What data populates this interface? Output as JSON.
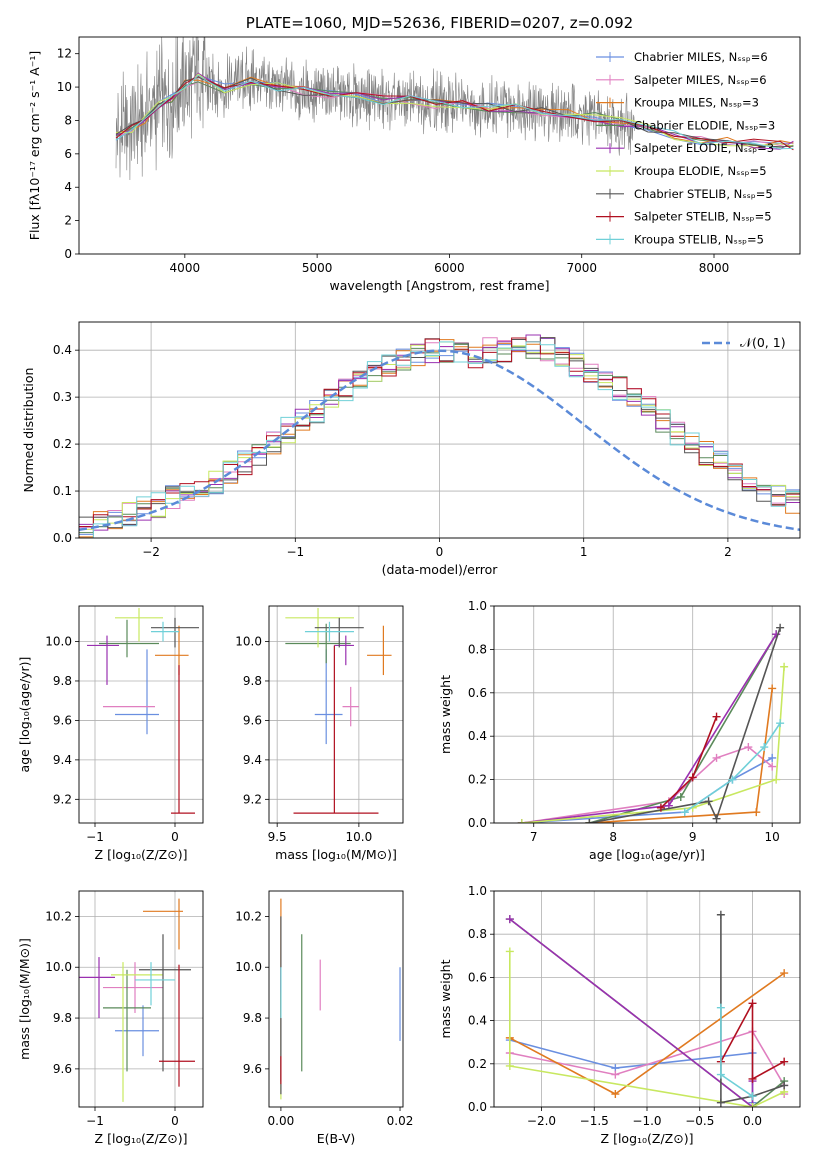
{
  "colors": [
    "#6a8fe0",
    "#e07fc0",
    "#e07a20",
    "#5a8a5a",
    "#9a30b0",
    "#c8e860",
    "#555555",
    "#b01020",
    "#70d0d8"
  ],
  "chart_data": [
    {
      "id": "spectrum",
      "type": "line",
      "title": "PLATE=1060, MJD=52636, FIBERID=0207, z=0.092",
      "xlabel": "wavelength [Angstrom, rest frame]",
      "ylabel": "Flux [fλ10⁻¹⁷ erg cm⁻² s⁻¹ A⁻¹]",
      "xlim": [
        3200,
        8650
      ],
      "ylim": [
        0,
        13
      ],
      "xticks": [
        4000,
        5000,
        6000,
        7000,
        8000
      ],
      "yticks": [
        0,
        2,
        4,
        6,
        8,
        10,
        12
      ],
      "grid": false,
      "legend_position": "top-right",
      "data_color": "#808080",
      "data": {
        "x": [
          3480,
          3600,
          3700,
          3800,
          3900,
          4000,
          4100,
          4200,
          4300,
          4400,
          4500,
          4600,
          4700,
          4800,
          4900,
          5000,
          5100,
          5200,
          5300,
          5400,
          5500,
          5600,
          5700,
          5800,
          5900,
          6000,
          6100,
          6200,
          6300,
          6400,
          6500,
          6600,
          6700,
          6800,
          6900,
          7000,
          7100,
          7200,
          7300,
          7400
        ],
        "y": [
          7.1,
          7.6,
          8.1,
          9.0,
          9.4,
          10.1,
          10.5,
          10.2,
          9.9,
          10.3,
          10.4,
          10.2,
          10.1,
          9.9,
          9.8,
          9.5,
          9.6,
          9.5,
          9.4,
          9.3,
          9.2,
          9.0,
          9.3,
          9.2,
          9.1,
          9.0,
          8.9,
          8.9,
          8.8,
          8.7,
          8.8,
          8.7,
          8.5,
          8.6,
          8.5,
          8.3,
          8.2,
          8.0,
          7.7,
          7.5
        ]
      },
      "models_x": [
        3480,
        3600,
        3700,
        3800,
        3900,
        4000,
        4100,
        4300,
        4500,
        4700,
        4900,
        5100,
        5300,
        5500,
        5700,
        5900,
        6100,
        6300,
        6500,
        6700,
        6900,
        7100,
        7300,
        7500,
        7700,
        7900,
        8100,
        8300,
        8500,
        8600
      ],
      "models_y": [
        7.0,
        7.5,
        8.0,
        8.9,
        9.3,
        10.2,
        10.6,
        9.9,
        10.4,
        10.0,
        9.8,
        9.6,
        9.4,
        9.2,
        9.2,
        9.0,
        8.9,
        8.8,
        8.7,
        8.5,
        8.4,
        8.2,
        7.9,
        7.5,
        7.1,
        6.8,
        6.7,
        6.6,
        6.5,
        6.5
      ],
      "series": [
        {
          "name": "Chabrier MILES, Nₛₛₚ=6"
        },
        {
          "name": "Salpeter MILES, Nₛₛₚ=6"
        },
        {
          "name": "Kroupa MILES, Nₛₛₚ=3"
        },
        {
          "name": "Chabrier ELODIE, Nₛₛₚ=3"
        },
        {
          "name": "Salpeter ELODIE, Nₛₛₚ=3"
        },
        {
          "name": "Kroupa ELODIE, Nₛₛₚ=5"
        },
        {
          "name": "Chabrier STELIB, Nₛₛₚ=5"
        },
        {
          "name": "Salpeter STELIB, Nₛₛₚ=5"
        },
        {
          "name": "Kroupa STELIB, Nₛₛₚ=5"
        }
      ]
    },
    {
      "id": "residuals",
      "type": "line",
      "xlabel": "(data-model)/error",
      "ylabel": "Normed distribution",
      "xlim": [
        -2.5,
        2.5
      ],
      "ylim": [
        0,
        0.46
      ],
      "xticks": [
        -2,
        -1,
        0,
        1,
        2
      ],
      "yticks": [
        0.0,
        0.1,
        0.2,
        0.3,
        0.4
      ],
      "grid": true,
      "legend_position": "top-right",
      "legend": "𝒩(0, 1)",
      "bins_start": -2.5,
      "bin_width": 0.1,
      "base_hist": [
        0.025,
        0.03,
        0.04,
        0.05,
        0.06,
        0.07,
        0.085,
        0.1,
        0.11,
        0.12,
        0.14,
        0.16,
        0.18,
        0.2,
        0.23,
        0.25,
        0.27,
        0.3,
        0.32,
        0.33,
        0.35,
        0.37,
        0.38,
        0.39,
        0.4,
        0.395,
        0.4,
        0.39,
        0.4,
        0.4,
        0.42,
        0.41,
        0.4,
        0.38,
        0.37,
        0.35,
        0.33,
        0.32,
        0.3,
        0.28,
        0.25,
        0.22,
        0.2,
        0.18,
        0.16,
        0.14,
        0.12,
        0.1,
        0.09,
        0.08,
        0.07,
        0.06,
        0.05,
        0.045,
        0.04,
        0.04
      ]
    },
    {
      "id": "age-vs-z",
      "type": "scatter",
      "xlabel": "Z [log₁₀(Z/Z⊙)]",
      "ylabel": "age  [log₁₀(age/yr)]",
      "xlim": [
        -1.2,
        0.35
      ],
      "ylim": [
        9.08,
        10.18
      ],
      "xticks": [
        -1,
        0
      ],
      "yticks": [
        9.2,
        9.4,
        9.6,
        9.8,
        10.0
      ],
      "grid": true,
      "points": [
        {
          "x": -0.35,
          "xerr": [
            0.4,
            0.15
          ],
          "y": 9.63,
          "yerr": [
            0.1,
            0.33
          ]
        },
        {
          "x": -0.5,
          "xerr": [
            0.4,
            0.25
          ],
          "y": 9.67,
          "yerr": [
            0.0,
            0.0
          ]
        },
        {
          "x": 0.05,
          "xerr": [
            0.3,
            0.12
          ],
          "y": 9.93,
          "yerr": [
            0.1,
            0.15
          ]
        },
        {
          "x": -0.6,
          "xerr": [
            0.35,
            0.4
          ],
          "y": 9.99,
          "yerr": [
            0.07,
            0.12
          ]
        },
        {
          "x": -0.85,
          "xerr": [
            0.25,
            0.15
          ],
          "y": 9.98,
          "yerr": [
            0.2,
            0.05
          ]
        },
        {
          "x": -0.45,
          "xerr": [
            0.3,
            0.3
          ],
          "y": 10.12,
          "yerr": [
            0.12,
            0.05
          ]
        },
        {
          "x": 0.0,
          "xerr": [
            0.3,
            0.3
          ],
          "y": 10.07,
          "yerr": [
            0.1,
            0.05
          ]
        },
        {
          "x": 0.05,
          "xerr": [
            0.1,
            0.2
          ],
          "y": 9.13,
          "yerr": [
            0.0,
            0.75
          ]
        },
        {
          "x": -0.15,
          "xerr": [
            0.15,
            0.2
          ],
          "y": 10.05,
          "yerr": [
            0.05,
            0.05
          ]
        }
      ]
    },
    {
      "id": "age-vs-mass",
      "type": "scatter",
      "xlabel": "mass [log₁₀(M/M⊙)]",
      "ylabel": "",
      "xlim": [
        9.45,
        10.27
      ],
      "ylim": [
        9.08,
        10.18
      ],
      "xticks": [
        9.5,
        10.0
      ],
      "yticks": [
        9.2,
        9.4,
        9.6,
        9.8,
        10.0
      ],
      "grid": true,
      "points": [
        {
          "x": 9.8,
          "xerr": [
            0.07,
            0.1
          ],
          "y": 9.63,
          "yerr": [
            0.15,
            0.33
          ]
        },
        {
          "x": 9.95,
          "xerr": [
            0.05,
            0.05
          ],
          "y": 9.67,
          "yerr": [
            0.1,
            0.1
          ]
        },
        {
          "x": 10.15,
          "xerr": [
            0.1,
            0.05
          ],
          "y": 9.93,
          "yerr": [
            0.1,
            0.15
          ]
        },
        {
          "x": 9.8,
          "xerr": [
            0.25,
            0.15
          ],
          "y": 9.99,
          "yerr": [
            0.1,
            0.1
          ]
        },
        {
          "x": 9.92,
          "xerr": [
            0.07,
            0.05
          ],
          "y": 9.98,
          "yerr": [
            0.1,
            0.05
          ]
        },
        {
          "x": 9.75,
          "xerr": [
            0.2,
            0.22
          ],
          "y": 10.12,
          "yerr": [
            0.15,
            0.05
          ]
        },
        {
          "x": 9.88,
          "xerr": [
            0.15,
            0.15
          ],
          "y": 10.07,
          "yerr": [
            0.1,
            0.05
          ]
        },
        {
          "x": 9.85,
          "xerr": [
            0.25,
            0.27
          ],
          "y": 9.13,
          "yerr": [
            0.0,
            0.85
          ]
        },
        {
          "x": 9.82,
          "xerr": [
            0.15,
            0.15
          ],
          "y": 10.05,
          "yerr": [
            0.05,
            0.05
          ]
        }
      ]
    },
    {
      "id": "weight-vs-age",
      "type": "line",
      "xlabel": "age  [log₁₀(age/yr)]",
      "ylabel": "mass weight",
      "xlim": [
        6.5,
        10.35
      ],
      "ylim": [
        0,
        1.0
      ],
      "xticks": [
        7,
        8,
        9,
        10
      ],
      "yticks": [
        0.0,
        0.2,
        0.4,
        0.6,
        0.8,
        1.0
      ],
      "grid": true,
      "series": [
        {
          "x": [
            6.85,
            8.9,
            9.5,
            10.0
          ],
          "y": [
            0.0,
            0.05,
            0.2,
            0.3
          ]
        },
        {
          "x": [
            6.85,
            8.7,
            9.3,
            9.7,
            10.0
          ],
          "y": [
            0.0,
            0.1,
            0.3,
            0.35,
            0.26
          ]
        },
        {
          "x": [
            7.7,
            9.8,
            10.0
          ],
          "y": [
            0.0,
            0.05,
            0.62
          ]
        },
        {
          "x": [
            7.7,
            8.85,
            10.05
          ],
          "y": [
            0.0,
            0.12,
            0.87
          ]
        },
        {
          "x": [
            6.85,
            8.7,
            10.05
          ],
          "y": [
            0.0,
            0.08,
            0.87
          ]
        },
        {
          "x": [
            6.85,
            9.0,
            10.05,
            10.15
          ],
          "y": [
            0.0,
            0.07,
            0.2,
            0.72
          ]
        },
        {
          "x": [
            7.7,
            9.2,
            9.3,
            10.1
          ],
          "y": [
            0.0,
            0.1,
            0.02,
            0.9
          ]
        },
        {
          "x": [
            8.6,
            9.0,
            9.3
          ],
          "y": [
            0.07,
            0.21,
            0.49
          ]
        },
        {
          "x": [
            8.9,
            9.5,
            9.9,
            10.1
          ],
          "y": [
            0.05,
            0.2,
            0.35,
            0.46
          ]
        }
      ]
    },
    {
      "id": "mass-vs-z",
      "type": "scatter",
      "xlabel": "Z [log₁₀(Z/Z⊙)]",
      "ylabel": "mass [log₁₀(M/M⊙)]",
      "xlim": [
        -1.2,
        0.35
      ],
      "ylim": [
        9.45,
        10.3
      ],
      "xticks": [
        -1,
        0
      ],
      "yticks": [
        9.6,
        9.8,
        10.0,
        10.2
      ],
      "grid": true,
      "points": [
        {
          "x": -0.4,
          "xerr": [
            0.35,
            0.2
          ],
          "y": 9.75,
          "yerr": [
            0.1,
            0.1
          ]
        },
        {
          "x": -0.5,
          "xerr": [
            0.4,
            0.35
          ],
          "y": 9.92,
          "yerr": [
            0.1,
            0.1
          ]
        },
        {
          "x": 0.05,
          "xerr": [
            0.45,
            0.05
          ],
          "y": 10.22,
          "yerr": [
            0.15,
            0.05
          ]
        },
        {
          "x": -0.6,
          "xerr": [
            0.3,
            0.3
          ],
          "y": 9.84,
          "yerr": [
            0.25,
            0.15
          ]
        },
        {
          "x": -0.95,
          "xerr": [
            0.3,
            0.2
          ],
          "y": 9.96,
          "yerr": [
            0.16,
            0.08
          ]
        },
        {
          "x": -0.65,
          "xerr": [
            0.15,
            0.5
          ],
          "y": 9.97,
          "yerr": [
            0.5,
            0.05
          ]
        },
        {
          "x": -0.15,
          "xerr": [
            0.3,
            0.35
          ],
          "y": 9.99,
          "yerr": [
            0.4,
            0.14
          ]
        },
        {
          "x": 0.05,
          "xerr": [
            0.25,
            0.2
          ],
          "y": 9.63,
          "yerr": [
            0.1,
            0.38
          ]
        },
        {
          "x": -0.3,
          "xerr": [
            0.2,
            0.3
          ],
          "y": 9.95,
          "yerr": [
            0.1,
            0.07
          ]
        }
      ]
    },
    {
      "id": "mass-vs-ebv",
      "type": "scatter",
      "xlabel": "E(B-V)",
      "ylabel": "",
      "xlim": [
        -0.002,
        0.0205
      ],
      "ylim": [
        9.45,
        10.3
      ],
      "xticks": [
        0.0,
        0.02
      ],
      "xtick_labels": [
        "0.00",
        "0.02"
      ],
      "yticks": [
        9.6,
        9.8,
        10.0,
        10.2
      ],
      "grid": false,
      "points": [
        {
          "x": 0.02,
          "xerr": [
            0,
            0
          ],
          "y": 9.86,
          "yerr": [
            0.15,
            0.14
          ]
        },
        {
          "x": 0.0066,
          "xerr": [
            0,
            0
          ],
          "y": 9.93,
          "yerr": [
            0.1,
            0.1
          ]
        },
        {
          "x": 0.0,
          "xerr": [
            0,
            0
          ],
          "y": 10.1,
          "yerr": [
            0.3,
            0.17
          ]
        },
        {
          "x": 0.0035,
          "xerr": [
            0,
            0
          ],
          "y": 9.87,
          "yerr": [
            0.28,
            0.26
          ]
        },
        {
          "x": 0.0,
          "xerr": [
            0,
            0
          ],
          "y": 9.8,
          "yerr": [
            0.25,
            0.2
          ]
        },
        {
          "x": 0.0,
          "xerr": [
            0,
            0
          ],
          "y": 9.7,
          "yerr": [
            0.22,
            0.2
          ]
        },
        {
          "x": 0.0,
          "xerr": [
            0,
            0
          ],
          "y": 9.9,
          "yerr": [
            0.4,
            0.3
          ]
        },
        {
          "x": 0.0,
          "xerr": [
            0,
            0
          ],
          "y": 9.6,
          "yerr": [
            0.06,
            0.05
          ]
        },
        {
          "x": 0.0,
          "xerr": [
            0,
            0
          ],
          "y": 9.9,
          "yerr": [
            0.1,
            0.1
          ]
        }
      ]
    },
    {
      "id": "weight-vs-z",
      "type": "line",
      "xlabel": "Z [log₁₀(Z/Z⊙)]",
      "ylabel": "mass weight",
      "xlim": [
        -2.45,
        0.45
      ],
      "ylim": [
        0,
        1.0
      ],
      "xticks": [
        -2.0,
        -1.5,
        -1.0,
        -0.5,
        0.0
      ],
      "yticks": [
        0.0,
        0.2,
        0.4,
        0.6,
        0.8,
        1.0
      ],
      "grid": true,
      "series": [
        {
          "x": [
            -2.3,
            -1.3,
            0.0,
            0.0
          ],
          "y": [
            0.31,
            0.18,
            0.25,
            0.02
          ]
        },
        {
          "x": [
            -2.3,
            -1.3,
            0.0,
            0.3,
            0.3
          ],
          "y": [
            0.25,
            0.15,
            0.35,
            0.1,
            0.06
          ]
        },
        {
          "x": [
            -2.3,
            -1.3,
            0.3
          ],
          "y": [
            0.32,
            0.06,
            0.62
          ]
        },
        {
          "x": [
            -2.3,
            0.0,
            0.3
          ],
          "y": [
            0.87,
            0.0,
            0.12
          ]
        },
        {
          "x": [
            -2.3,
            0.0,
            0.0
          ],
          "y": [
            0.87,
            0.0,
            0.12
          ]
        },
        {
          "x": [
            -2.3,
            -2.3,
            0.0,
            0.3
          ],
          "y": [
            0.72,
            0.19,
            0.0,
            0.07
          ]
        },
        {
          "x": [
            -0.3,
            -0.3,
            0.0,
            0.3
          ],
          "y": [
            0.89,
            0.02,
            0.05,
            0.1
          ]
        },
        {
          "x": [
            -0.3,
            0.0,
            0.0,
            0.3
          ],
          "y": [
            0.21,
            0.48,
            0.13,
            0.21
          ]
        },
        {
          "x": [
            -0.3,
            -0.3,
            0.0
          ],
          "y": [
            0.46,
            0.15,
            0.05
          ]
        }
      ]
    }
  ]
}
